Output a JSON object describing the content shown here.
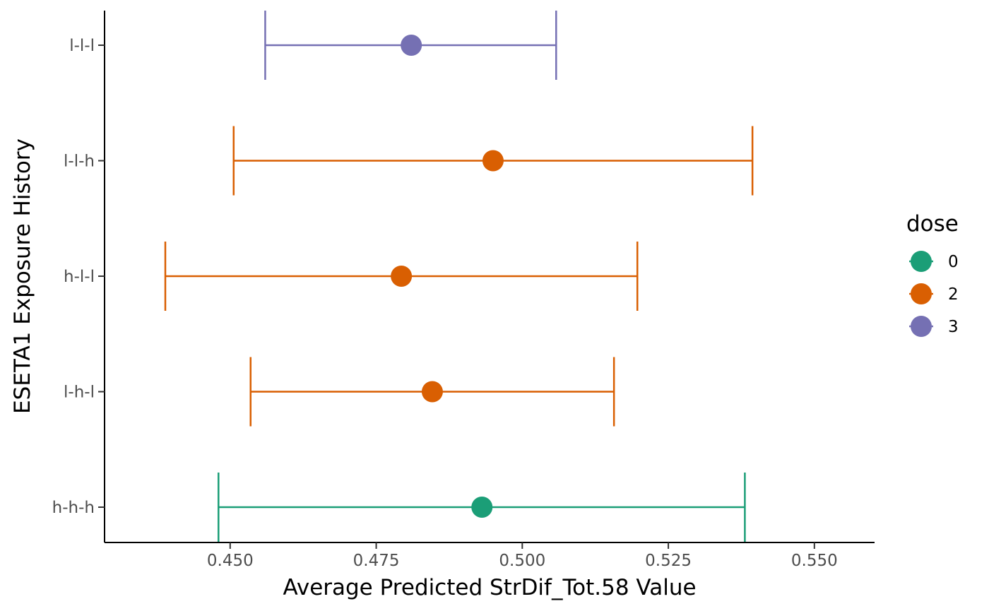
{
  "chart_data": {
    "type": "scatter",
    "subtype": "point-range (dot and error bar)",
    "title": "",
    "xlabel": "Average Predicted StrDif_Tot.58 Value",
    "ylabel": "ESETA1 Exposure History",
    "xlim": [
      0.4285,
      0.5603
    ],
    "x_ticks": [
      0.45,
      0.475,
      0.5,
      0.525,
      0.55
    ],
    "x_tick_labels": [
      "0.450",
      "0.475",
      "0.500",
      "0.525",
      "0.550"
    ],
    "categories": [
      "l-l-l",
      "l-l-h",
      "h-l-l",
      "l-h-l",
      "h-h-h"
    ],
    "grid": false,
    "legend": {
      "title": "dose",
      "placement": "right",
      "entries": [
        {
          "label": "0",
          "color": "#1b9e77"
        },
        {
          "label": "2",
          "color": "#d95f02"
        },
        {
          "label": "3",
          "color": "#7570b3"
        }
      ]
    },
    "points": [
      {
        "category": "l-l-l",
        "dose": "3",
        "estimate": 0.481,
        "lower": 0.456,
        "upper": 0.5058
      },
      {
        "category": "l-l-h",
        "dose": "2",
        "estimate": 0.495,
        "lower": 0.4506,
        "upper": 0.5394
      },
      {
        "category": "h-l-l",
        "dose": "2",
        "estimate": 0.4793,
        "lower": 0.4389,
        "upper": 0.5197
      },
      {
        "category": "l-h-l",
        "dose": "2",
        "estimate": 0.4846,
        "lower": 0.4535,
        "upper": 0.5157
      },
      {
        "category": "h-h-h",
        "dose": "0",
        "estimate": 0.4931,
        "lower": 0.448,
        "upper": 0.5381
      }
    ]
  }
}
